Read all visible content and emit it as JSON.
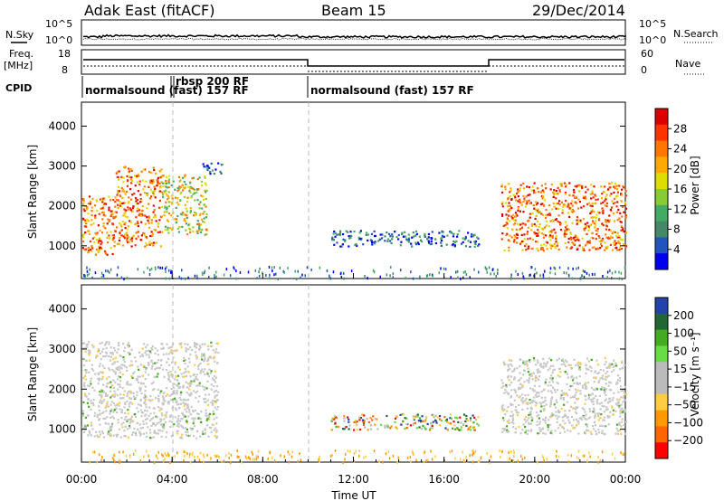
{
  "header": {
    "station": "Adak East (fitACF)",
    "beam": "Beam 15",
    "date": "29/Dec/2014"
  },
  "noise_panel": {
    "left_label": "N.Sky",
    "right_label": "N.Search",
    "ticks_left": [
      "10^5",
      "10^0"
    ],
    "ticks_right": [
      "10^5",
      "10^0"
    ]
  },
  "freq_panel": {
    "left_label_1": "Freq.",
    "left_label_2": "[MHz]",
    "right_label": "Nave",
    "ticks_left": [
      "18",
      "8"
    ],
    "ticks_right": [
      "60",
      "0"
    ]
  },
  "cpid_panel": {
    "label": "CPID",
    "segments": [
      {
        "text": "normalsound (fast) 157 RF",
        "start_hour": 0,
        "end_hour": 10
      },
      {
        "text": "rbsp 200 RF",
        "start_hour": 4,
        "end_hour": 4.1
      },
      {
        "text": "normalsound (fast) 157 RF",
        "start_hour": 10,
        "end_hour": 24
      }
    ]
  },
  "power_colorbar": {
    "label": "Power [dB]",
    "ticks": [
      "28",
      "24",
      "20",
      "16",
      "12",
      "8",
      "4"
    ],
    "colors": [
      "#dd0000",
      "#ff3300",
      "#ff7700",
      "#ffaa00",
      "#dddd00",
      "#88cc33",
      "#44aa66",
      "#448866",
      "#2255bb",
      "#0000ee"
    ]
  },
  "velocity_colorbar": {
    "label": "Velocity [m s⁻¹]",
    "ticks": [
      "200",
      "100",
      "50",
      "15",
      "−15",
      "−50",
      "−100",
      "−200"
    ],
    "colors": [
      "#2244aa",
      "#226633",
      "#44aa22",
      "#66dd44",
      "#bbbbbb",
      "#bbbbbb",
      "#ffcc44",
      "#ff9900",
      "#ff6600",
      "#ff0000"
    ]
  },
  "chart_data": [
    {
      "type": "heatmap",
      "name": "power",
      "ylabel": "Slant Range [km]",
      "xlabel": "Time UT",
      "xlim": [
        0,
        24
      ],
      "ylim": [
        180,
        4600
      ],
      "yticks": [
        1000,
        2000,
        3000,
        4000
      ],
      "xtick_labels": [
        "00:00",
        "04:00",
        "08:00",
        "12:00",
        "16:00",
        "20:00",
        "00:00"
      ],
      "xticks": [
        0,
        4,
        8,
        12,
        16,
        20,
        24
      ],
      "regions": [
        {
          "t0": 0.0,
          "t1": 1.5,
          "r0": 800,
          "r1": 2300,
          "level": "high"
        },
        {
          "t0": 1.5,
          "t1": 3.5,
          "r0": 1000,
          "r1": 3000,
          "level": "high"
        },
        {
          "t0": 3.5,
          "t1": 5.5,
          "r0": 1300,
          "r1": 2800,
          "level": "mid"
        },
        {
          "t0": 5.3,
          "t1": 6.2,
          "r0": 2800,
          "r1": 3100,
          "level": "low"
        },
        {
          "t0": 11.0,
          "t1": 17.5,
          "r0": 1000,
          "r1": 1400,
          "level": "low"
        },
        {
          "t0": 18.5,
          "t1": 24.0,
          "r0": 900,
          "r1": 2600,
          "level": "high"
        }
      ]
    },
    {
      "type": "heatmap",
      "name": "velocity",
      "ylabel": "Slant Range [km]",
      "xlabel": "Time UT",
      "xlim": [
        0,
        24
      ],
      "ylim": [
        180,
        4600
      ],
      "yticks": [
        1000,
        2000,
        3000,
        4000
      ],
      "xtick_labels": [
        "00:00",
        "04:00",
        "08:00",
        "12:00",
        "16:00",
        "20:00",
        "00:00"
      ],
      "xticks": [
        0,
        4,
        8,
        12,
        16,
        20,
        24
      ],
      "regions": [
        {
          "t0": 0.0,
          "t1": 6.0,
          "r0": 800,
          "r1": 3200,
          "level": "neutral"
        },
        {
          "t0": 11.0,
          "t1": 17.5,
          "r0": 1000,
          "r1": 1400,
          "level": "mixed"
        },
        {
          "t0": 18.5,
          "t1": 24.0,
          "r0": 900,
          "r1": 2800,
          "level": "neutral"
        }
      ]
    }
  ]
}
